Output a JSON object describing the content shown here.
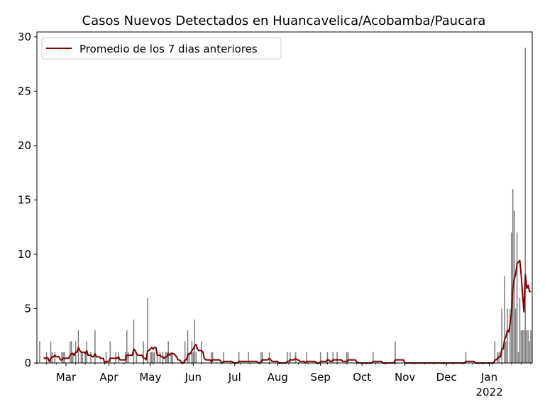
{
  "chart_data": {
    "type": "bar",
    "title": "Casos Nuevos Detectados en Huancavelica/Acobamba/Paucara",
    "xlabel": "",
    "ylabel": "",
    "xlim": [
      "2021-02-08",
      "2022-02-01"
    ],
    "ylim": [
      0,
      30.45
    ],
    "yticks": [
      0,
      5,
      10,
      15,
      20,
      25,
      30
    ],
    "xticks": [
      {
        "date": "2021-03-01",
        "label": "Mar"
      },
      {
        "date": "2021-04-01",
        "label": "Apr"
      },
      {
        "date": "2021-05-01",
        "label": "May"
      },
      {
        "date": "2021-06-01",
        "label": "Jun"
      },
      {
        "date": "2021-07-01",
        "label": "Jul"
      },
      {
        "date": "2021-08-01",
        "label": "Aug"
      },
      {
        "date": "2021-09-01",
        "label": "Sep"
      },
      {
        "date": "2021-10-01",
        "label": "Oct"
      },
      {
        "date": "2021-11-01",
        "label": "Nov"
      },
      {
        "date": "2021-12-01",
        "label": "Dec"
      },
      {
        "date": "2022-01-01",
        "label": "Jan",
        "sublabel": "2022"
      }
    ],
    "grid": false,
    "legend": {
      "placement": "top-left",
      "entries": [
        "Promedio de los 7 dias anteriores"
      ]
    },
    "colors": {
      "bars": "#808080",
      "line": "#800000"
    },
    "date_range": [
      "2021-02-10",
      "2022-01-31"
    ],
    "daily_cases_nonzero": [
      [
        "2021-02-10",
        2
      ],
      [
        "2021-02-15",
        1
      ],
      [
        "2021-02-18",
        2
      ],
      [
        "2021-02-19",
        1
      ],
      [
        "2021-02-21",
        1
      ],
      [
        "2021-02-26",
        1
      ],
      [
        "2021-02-27",
        1
      ],
      [
        "2021-02-28",
        1
      ],
      [
        "2021-03-04",
        2
      ],
      [
        "2021-03-05",
        2
      ],
      [
        "2021-03-06",
        1
      ],
      [
        "2021-03-08",
        2
      ],
      [
        "2021-03-10",
        3
      ],
      [
        "2021-03-12",
        1
      ],
      [
        "2021-03-13",
        1
      ],
      [
        "2021-03-15",
        1
      ],
      [
        "2021-03-16",
        2
      ],
      [
        "2021-03-19",
        1
      ],
      [
        "2021-03-22",
        3
      ],
      [
        "2021-03-30",
        1
      ],
      [
        "2021-04-02",
        2
      ],
      [
        "2021-04-06",
        1
      ],
      [
        "2021-04-08",
        1
      ],
      [
        "2021-04-13",
        1
      ],
      [
        "2021-04-14",
        3
      ],
      [
        "2021-04-15",
        1
      ],
      [
        "2021-04-19",
        4
      ],
      [
        "2021-04-21",
        1
      ],
      [
        "2021-04-26",
        2
      ],
      [
        "2021-04-29",
        6
      ],
      [
        "2021-05-01",
        1
      ],
      [
        "2021-05-02",
        1
      ],
      [
        "2021-05-03",
        1
      ],
      [
        "2021-05-04",
        1
      ],
      [
        "2021-05-06",
        1
      ],
      [
        "2021-05-08",
        1
      ],
      [
        "2021-05-10",
        1
      ],
      [
        "2021-05-12",
        1
      ],
      [
        "2021-05-13",
        1
      ],
      [
        "2021-05-14",
        2
      ],
      [
        "2021-05-16",
        1
      ],
      [
        "2021-05-17",
        1
      ],
      [
        "2021-05-26",
        2
      ],
      [
        "2021-05-28",
        3
      ],
      [
        "2021-05-29",
        1
      ],
      [
        "2021-05-31",
        2
      ],
      [
        "2021-06-01",
        1
      ],
      [
        "2021-06-02",
        4
      ],
      [
        "2021-06-03",
        1
      ],
      [
        "2021-06-07",
        2
      ],
      [
        "2021-06-14",
        1
      ],
      [
        "2021-06-15",
        1
      ],
      [
        "2021-06-23",
        1
      ],
      [
        "2021-07-04",
        1
      ],
      [
        "2021-07-11",
        1
      ],
      [
        "2021-07-20",
        1
      ],
      [
        "2021-07-21",
        1
      ],
      [
        "2021-07-26",
        1
      ],
      [
        "2021-08-08",
        1
      ],
      [
        "2021-08-10",
        1
      ],
      [
        "2021-08-14",
        1
      ],
      [
        "2021-08-22",
        1
      ],
      [
        "2021-09-01",
        1
      ],
      [
        "2021-09-06",
        1
      ],
      [
        "2021-09-10",
        1
      ],
      [
        "2021-09-13",
        1
      ],
      [
        "2021-09-20",
        1
      ],
      [
        "2021-09-21",
        1
      ],
      [
        "2021-10-09",
        1
      ],
      [
        "2021-10-25",
        2
      ],
      [
        "2021-12-15",
        1
      ],
      [
        "2022-01-05",
        2
      ],
      [
        "2022-01-07",
        1
      ],
      [
        "2022-01-08",
        1
      ],
      [
        "2022-01-10",
        5
      ],
      [
        "2022-01-12",
        8
      ],
      [
        "2022-01-13",
        2
      ],
      [
        "2022-01-14",
        5
      ],
      [
        "2022-01-16",
        5
      ],
      [
        "2022-01-17",
        12
      ],
      [
        "2022-01-18",
        16
      ],
      [
        "2022-01-19",
        14
      ],
      [
        "2022-01-20",
        5
      ],
      [
        "2022-01-21",
        12
      ],
      [
        "2022-01-22",
        1
      ],
      [
        "2022-01-23",
        6
      ],
      [
        "2022-01-24",
        3
      ],
      [
        "2022-01-25",
        3
      ],
      [
        "2022-01-26",
        3
      ],
      [
        "2022-01-27",
        29
      ],
      [
        "2022-01-28",
        3
      ],
      [
        "2022-01-29",
        3
      ],
      [
        "2022-01-30",
        2
      ],
      [
        "2022-01-31",
        3
      ]
    ],
    "rolling_window_days": 7
  }
}
